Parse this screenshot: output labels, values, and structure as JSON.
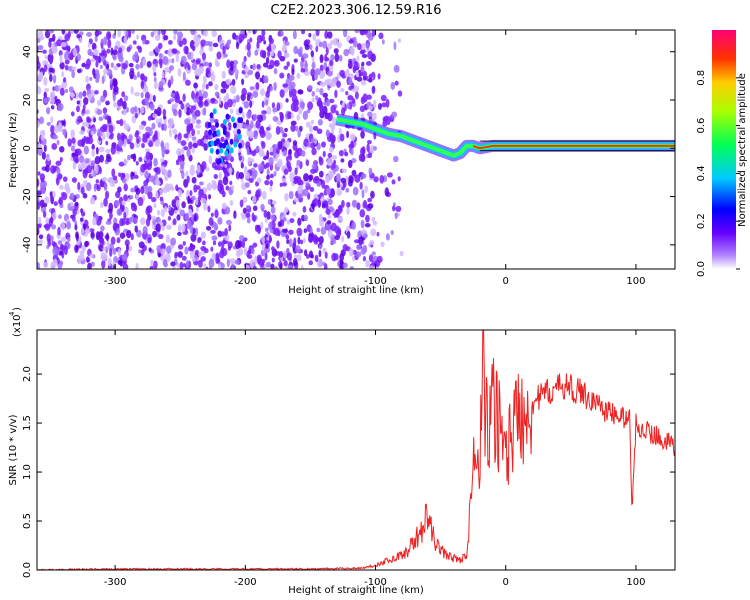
{
  "title": "C2E2.2023.306.12.59.R16",
  "chart_data": [
    {
      "type": "heatmap",
      "xlabel": "Height of straight line (km)",
      "ylabel": "Frequency (Hz)",
      "xlim": [
        -360,
        130
      ],
      "ylim": [
        -50,
        49
      ],
      "xticks": [
        -300,
        -200,
        -100,
        0,
        100
      ],
      "yticks": [
        40,
        20,
        0,
        -20,
        -40
      ],
      "colorbar": {
        "label": "Normalized spectral amplitude",
        "range": [
          0.0,
          1.0
        ],
        "ticks": [
          "0.0",
          "0.2",
          "0.4",
          "0.6",
          "0.8"
        ]
      },
      "trace": {
        "x": [
          -130,
          -120,
          -110,
          -100,
          -90,
          -80,
          -70,
          -60,
          -50,
          -40,
          -35,
          -30,
          -25,
          -20,
          -10,
          0,
          20,
          60,
          100,
          130
        ],
        "y": [
          12,
          11,
          10,
          8,
          6,
          5,
          3,
          1,
          -1,
          -3,
          -2,
          1,
          1,
          0,
          1,
          1,
          1,
          1,
          1,
          1
        ]
      },
      "noise_region_x": [
        -360,
        -100
      ]
    },
    {
      "type": "line",
      "xlabel": "Height of straight line (km)",
      "ylabel": "SNR (10 * v/v)",
      "y_multiplier_label": "(x10",
      "y_multiplier_exp": "4",
      "xlim": [
        -360,
        130
      ],
      "ylim": [
        0,
        2.45
      ],
      "xticks": [
        -300,
        -200,
        -100,
        0,
        100
      ],
      "yticks": [
        "0.0",
        "0.5",
        "1.0",
        "1.5",
        "2.0"
      ],
      "color": "#ee2222",
      "series": [
        {
          "x": [
            -360,
            -300,
            -200,
            -150,
            -110,
            -100,
            -90,
            -80,
            -75,
            -70,
            -65,
            -60,
            -58,
            -55,
            -50,
            -45,
            -40,
            -35,
            -30,
            -28,
            -25,
            -22,
            -20,
            -18,
            -16,
            -14,
            -12,
            -10,
            -5,
            0,
            5,
            10,
            20,
            30,
            40,
            45,
            50,
            60,
            70,
            80,
            90,
            95,
            97,
            100,
            110,
            120,
            130
          ],
          "y": [
            0.0,
            0.01,
            0.01,
            0.01,
            0.02,
            0.05,
            0.1,
            0.15,
            0.2,
            0.3,
            0.4,
            0.55,
            0.45,
            0.3,
            0.2,
            0.15,
            0.12,
            0.1,
            0.15,
            0.5,
            1.0,
            1.2,
            0.8,
            2.45,
            1.3,
            1.6,
            1.4,
            1.7,
            1.5,
            1.2,
            1.4,
            1.6,
            1.7,
            1.8,
            1.85,
            1.9,
            1.85,
            1.8,
            1.7,
            1.6,
            1.55,
            1.6,
            0.6,
            1.5,
            1.4,
            1.35,
            1.25
          ]
        }
      ]
    }
  ]
}
